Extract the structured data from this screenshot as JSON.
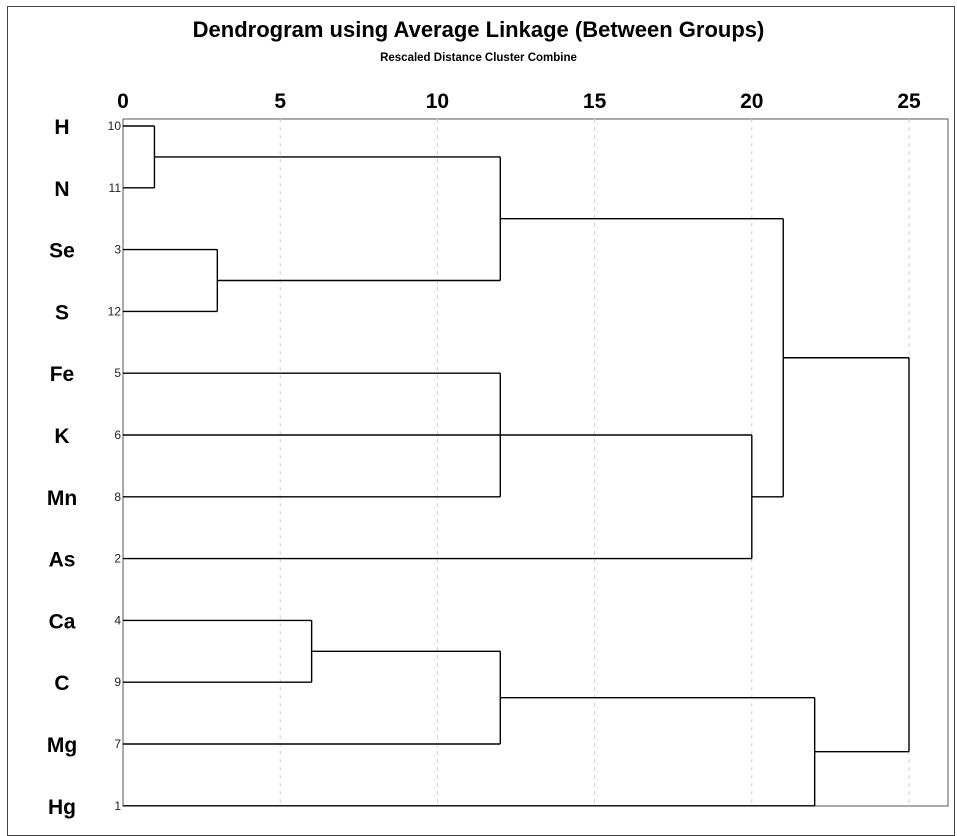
{
  "chart_data": {
    "type": "dendrogram",
    "title": "Dendrogram using Average Linkage (Between Groups)",
    "subtitle": "Rescaled Distance Cluster Combine",
    "xlim": [
      0,
      25
    ],
    "xticks": [
      "0",
      "5",
      "10",
      "15",
      "20",
      "25"
    ],
    "grid": true,
    "leaves": [
      {
        "name": "H",
        "number": "10"
      },
      {
        "name": "N",
        "number": "11"
      },
      {
        "name": "Se",
        "number": "3"
      },
      {
        "name": "S",
        "number": "12"
      },
      {
        "name": "Fe",
        "number": "5"
      },
      {
        "name": "K",
        "number": "6"
      },
      {
        "name": "Mn",
        "number": "8"
      },
      {
        "name": "As",
        "number": "2"
      },
      {
        "name": "Ca",
        "number": "4"
      },
      {
        "name": "C",
        "number": "9"
      },
      {
        "name": "Mg",
        "number": "7"
      },
      {
        "name": "Hg",
        "number": "1"
      }
    ],
    "merges": [
      {
        "id": "m1",
        "left": "H",
        "right": "N",
        "distance": 1
      },
      {
        "id": "m2",
        "left": "Se",
        "right": "S",
        "distance": 3
      },
      {
        "id": "m3",
        "left": "m1",
        "right": "m2",
        "distance": 12
      },
      {
        "id": "m4",
        "left": "Fe",
        "right": "K",
        "right2": "Mn",
        "distance": 12
      },
      {
        "id": "m5",
        "left": "m4",
        "right": "As",
        "distance": 20
      },
      {
        "id": "m6",
        "left": "m3",
        "right": "m5",
        "distance": 21
      },
      {
        "id": "m7",
        "left": "Ca",
        "right": "C",
        "distance": 6
      },
      {
        "id": "m8",
        "left": "m7",
        "right": "Mg",
        "distance": 12
      },
      {
        "id": "m9",
        "left": "m8",
        "right": "Hg",
        "distance": 22
      },
      {
        "id": "m10",
        "left": "m6",
        "right": "m9",
        "distance": 25
      }
    ]
  }
}
